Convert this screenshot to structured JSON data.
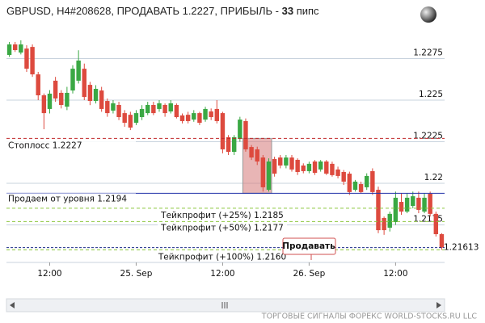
{
  "chart_data": {
    "type": "candlestick",
    "title_parts": [
      "GBPUSD, H4#208628, ПРОДАВАТЬ 1.2227, ПРИБЫЛЬ -",
      "33",
      "пипс"
    ],
    "categories": [
      null,
      null,
      null,
      null,
      null,
      null,
      null,
      "12:00",
      null,
      null,
      null,
      null,
      null,
      null,
      null,
      null,
      null,
      null,
      null,
      null,
      null,
      null,
      "25. Sep",
      null,
      null,
      null,
      null,
      null,
      null,
      null,
      null,
      null,
      null,
      null,
      null,
      null,
      null,
      "12:00",
      null,
      null,
      null,
      null,
      null,
      null,
      null,
      null,
      null,
      null,
      null,
      null,
      null,
      null,
      "26. Sep",
      null,
      null,
      null,
      null,
      null,
      null,
      null,
      null,
      null,
      null,
      null,
      null,
      null,
      null,
      "12:00",
      null,
      null,
      null,
      null,
      null,
      null,
      null,
      null
    ],
    "open": [
      1.22772,
      1.22835,
      1.22786,
      1.2281,
      1.2282,
      1.22655,
      1.22529,
      1.22447,
      1.22617,
      1.22544,
      1.22461,
      1.22558,
      1.22617,
      1.22689,
      1.22592,
      1.22495,
      1.22558,
      1.22495,
      1.22437,
      1.22471,
      1.22422,
      1.22412,
      1.22364,
      1.22398,
      1.22422,
      1.22471,
      1.22447,
      1.22471,
      1.22432,
      1.22471,
      1.22408,
      1.22412,
      1.22383,
      1.22422,
      1.22383,
      1.22432,
      1.22447,
      1.22422,
      1.22277,
      1.22189,
      1.22267,
      1.22374,
      1.22218,
      1.22204,
      1.22155,
      1.21961,
      1.22146,
      1.22155,
      1.22107,
      1.22155,
      1.22141,
      1.22107,
      1.22073,
      1.22131,
      1.22083,
      1.22131,
      1.22117,
      1.22083,
      1.22068,
      1.22058,
      1.21961,
      1.21995,
      1.21976,
      1.22073,
      1.21961,
      1.21791,
      1.21733,
      1.21767,
      1.21888,
      1.2183,
      1.21864,
      1.21913,
      1.2183,
      1.21937,
      1.21816,
      1.21694
    ],
    "high": [
      1.2285,
      1.2285,
      1.2286,
      1.2283,
      1.22835,
      1.2267,
      1.2254,
      1.2256,
      1.2264,
      1.2256,
      1.2258,
      1.2271,
      1.228,
      1.2272,
      1.2261,
      1.2259,
      1.2258,
      1.2251,
      1.225,
      1.2249,
      1.2244,
      1.2243,
      1.2244,
      1.2247,
      1.2249,
      1.2249,
      1.225,
      1.2248,
      1.225,
      1.2248,
      1.2242,
      1.2243,
      1.2244,
      1.2243,
      1.2246,
      1.2245,
      1.225,
      1.2243,
      1.2229,
      1.2229,
      1.224,
      1.2239,
      1.2223,
      1.2222,
      1.2217,
      1.2215,
      1.2216,
      1.2217,
      1.2217,
      1.2217,
      1.2215,
      1.2212,
      1.2213,
      1.2214,
      1.2214,
      1.2214,
      1.2213,
      1.221,
      1.2208,
      1.2207,
      1.2202,
      1.2201,
      1.2206,
      1.2209,
      1.2198,
      1.218,
      1.2183,
      1.2195,
      1.2194,
      1.2194,
      1.2195,
      1.2195,
      1.2194,
      1.2195,
      1.2183,
      1.217
    ],
    "low": [
      1.2276,
      1.2279,
      1.22775,
      1.2267,
      1.2264,
      1.225,
      1.22325,
      1.2242,
      1.2249,
      1.2245,
      1.2244,
      1.2254,
      1.226,
      1.225,
      1.2247,
      1.2248,
      1.2243,
      1.224,
      1.2242,
      1.2238,
      1.2234,
      1.2232,
      1.2235,
      1.2238,
      1.2241,
      1.2241,
      1.2243,
      1.224,
      1.2242,
      1.2239,
      1.2236,
      1.2236,
      1.2237,
      1.2235,
      1.2237,
      1.2238,
      1.2236,
      1.2218,
      1.2217,
      1.2217,
      1.2225,
      1.2219,
      1.2214,
      1.2211,
      1.2195,
      1.2195,
      1.2204,
      1.2209,
      1.2209,
      1.2207,
      1.2205,
      1.2206,
      1.2206,
      1.2205,
      1.2207,
      1.2205,
      1.2204,
      1.2203,
      1.2199,
      1.2193,
      1.2195,
      1.2194,
      1.2196,
      1.2193,
      1.217,
      1.2169,
      1.2171,
      1.2175,
      1.2181,
      1.2182,
      1.2185,
      1.2182,
      1.2182,
      1.218,
      1.2168,
      1.216
    ],
    "close": [
      1.22835,
      1.22801,
      1.22835,
      1.22689,
      1.22655,
      1.22529,
      1.22422,
      1.22539,
      1.2251,
      1.22471,
      1.22544,
      1.22689,
      1.22738,
      1.22519,
      1.22495,
      1.22568,
      1.22447,
      1.22422,
      1.22481,
      1.22398,
      1.22364,
      1.22335,
      1.22422,
      1.22447,
      1.22471,
      1.22422,
      1.22481,
      1.22422,
      1.22481,
      1.22398,
      1.22374,
      1.22374,
      1.22422,
      1.22364,
      1.22447,
      1.22398,
      1.22374,
      1.22204,
      1.22189,
      1.22277,
      1.22383,
      1.22204,
      1.22155,
      1.22131,
      1.21976,
      1.22131,
      1.22058,
      1.22107,
      1.22155,
      1.22083,
      1.22068,
      1.22073,
      1.22117,
      1.22063,
      1.22131,
      1.22058,
      1.22049,
      1.22044,
      1.2201,
      1.21947,
      1.2201,
      1.21947,
      1.22044,
      1.21947,
      1.21718,
      1.21718,
      1.21816,
      1.21913,
      1.2183,
      1.21913,
      1.21922,
      1.2184,
      1.21913,
      1.21816,
      1.21694,
      1.21613
    ],
    "up_color": "#3aa843",
    "down_color": "#dd4a3e",
    "ylim": [
      1.21524,
      1.22908
    ],
    "yticks": [
      1.2175,
      1.22,
      1.2225,
      1.225,
      1.2275
    ],
    "grid": true,
    "levels": [
      {
        "label": "Стоплосс 1.2227",
        "value": 1.2227,
        "color": "#c0282a",
        "style": "dashed"
      },
      {
        "label": "Продаем от уровня 1.2194",
        "value": 1.2194,
        "color": "#2233aa",
        "style": "solid"
      },
      {
        "label": "Тейкпрофит (+25%) 1.2185",
        "value": 1.2185,
        "color": "#8cc63f",
        "style": "dashed"
      },
      {
        "label": "Тейкпрофит (+50%) 1.2177",
        "value": 1.2177,
        "color": "#8cc63f",
        "style": "dashed"
      },
      {
        "label": "Тейкпрофит (+100%) 1.2160",
        "value": 1.216,
        "color": "#8cc63f",
        "style": "dashed"
      }
    ],
    "current_price": 1.21613,
    "signal_label": "Продавать",
    "footer": "ТОРГОВЫЕ СИГНАЛЫ ФОРЕКС WORLD-STOCKS.RU LLC"
  }
}
